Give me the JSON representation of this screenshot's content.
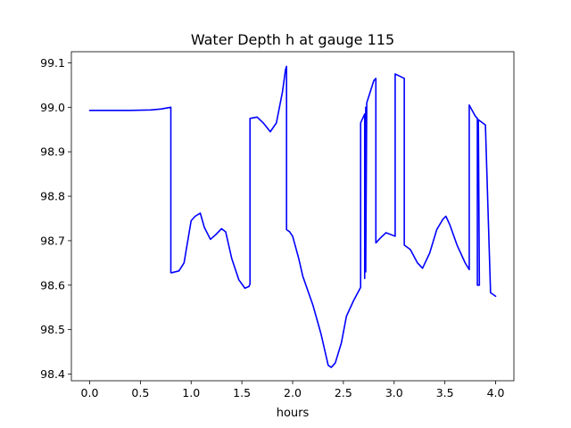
{
  "chart_data": {
    "type": "line",
    "title": "Water Depth h at gauge 115",
    "xlabel": "hours",
    "ylabel": "",
    "xlim": [
      -0.18,
      4.18
    ],
    "ylim": [
      98.385,
      99.125
    ],
    "xticks": [
      0.0,
      0.5,
      1.0,
      1.5,
      2.0,
      2.5,
      3.0,
      3.5,
      4.0
    ],
    "xtick_labels": [
      "0.0",
      "0.5",
      "1.0",
      "1.5",
      "2.0",
      "2.5",
      "3.0",
      "3.5",
      "4.0"
    ],
    "yticks": [
      98.4,
      98.5,
      98.6,
      98.7,
      98.8,
      98.9,
      99.0,
      99.1
    ],
    "ytick_labels": [
      "98.4",
      "98.5",
      "98.6",
      "98.7",
      "98.8",
      "98.9",
      "99.0",
      "99.1"
    ],
    "grid": false,
    "series": [
      {
        "color": "#0000ff",
        "x": [
          0.0,
          0.2,
          0.4,
          0.6,
          0.7,
          0.8,
          0.8,
          0.81,
          0.88,
          0.93,
          1.0,
          1.04,
          1.09,
          1.13,
          1.19,
          1.24,
          1.3,
          1.34,
          1.4,
          1.47,
          1.53,
          1.57,
          1.58,
          1.58,
          1.65,
          1.71,
          1.78,
          1.84,
          1.9,
          1.93,
          1.94,
          1.94,
          1.97,
          2.0,
          2.06,
          2.1,
          2.2,
          2.28,
          2.35,
          2.38,
          2.42,
          2.48,
          2.53,
          2.6,
          2.67,
          2.67,
          2.71,
          2.71,
          2.71,
          2.72,
          2.72,
          2.72,
          2.73,
          2.73,
          2.8,
          2.82,
          2.82,
          2.86,
          2.92,
          3.01,
          3.01,
          3.1,
          3.1,
          3.16,
          3.23,
          3.28,
          3.35,
          3.42,
          3.48,
          3.51,
          3.55,
          3.62,
          3.7,
          3.74,
          3.74,
          3.8,
          3.82,
          3.82,
          3.84,
          3.83,
          3.9,
          3.9,
          3.95,
          4.0
        ],
        "y": [
          98.993,
          98.993,
          98.993,
          98.994,
          98.996,
          99.0,
          98.628,
          98.628,
          98.632,
          98.65,
          98.745,
          98.755,
          98.762,
          98.73,
          98.703,
          98.713,
          98.727,
          98.72,
          98.66,
          98.612,
          98.593,
          98.597,
          98.603,
          98.975,
          98.978,
          98.965,
          98.945,
          98.965,
          99.035,
          99.085,
          99.092,
          98.725,
          98.72,
          98.71,
          98.66,
          98.62,
          98.555,
          98.49,
          98.42,
          98.415,
          98.425,
          98.47,
          98.53,
          98.565,
          98.595,
          98.965,
          98.985,
          98.615,
          98.985,
          98.63,
          99.0,
          98.635,
          99.0,
          99.01,
          99.06,
          99.065,
          98.695,
          98.705,
          98.718,
          98.71,
          99.075,
          99.065,
          98.69,
          98.68,
          98.65,
          98.638,
          98.672,
          98.725,
          98.748,
          98.755,
          98.735,
          98.69,
          98.65,
          98.635,
          99.005,
          98.98,
          98.975,
          98.6,
          98.6,
          98.972,
          98.96,
          98.955,
          98.583,
          98.575
        ]
      }
    ]
  }
}
